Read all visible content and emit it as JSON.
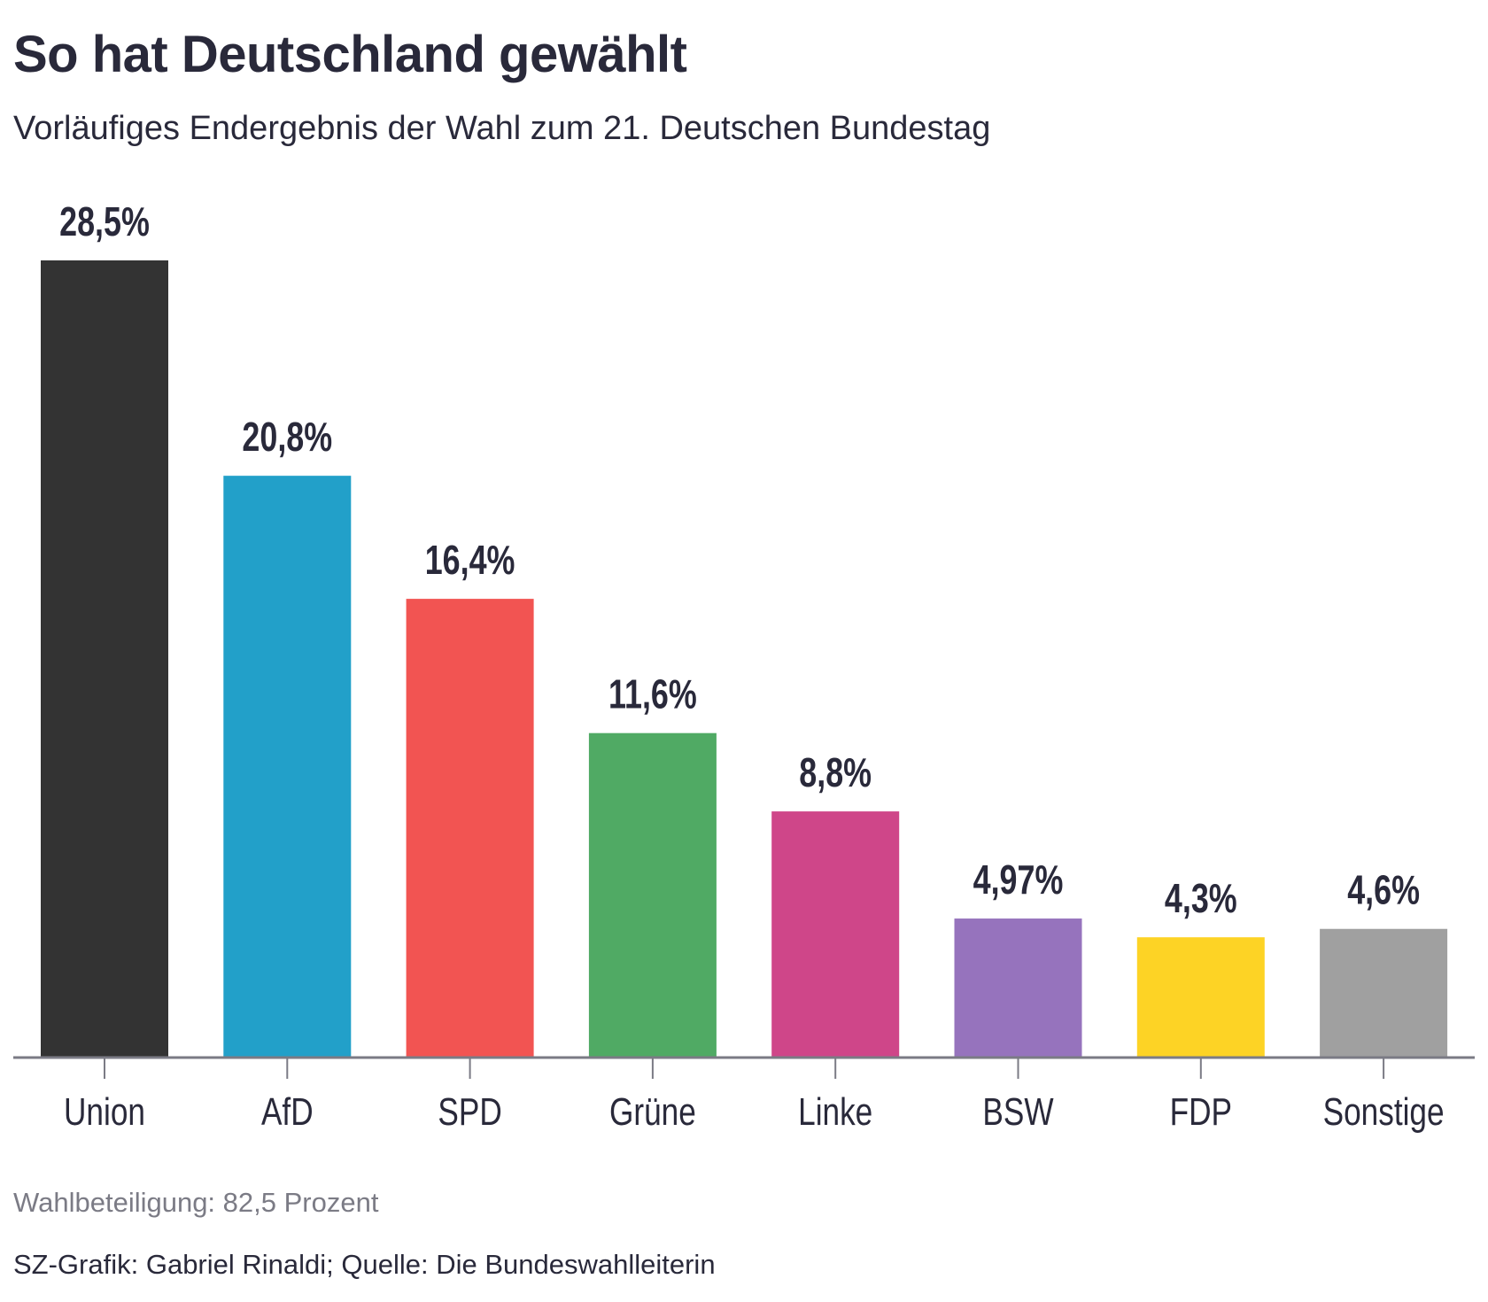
{
  "title": "So hat Deutschland gewählt",
  "subtitle": "Vorläufiges Endergebnis der Wahl zum 21. Deutschen Bundestag",
  "chart_data": {
    "type": "bar",
    "categories": [
      "Union",
      "AfD",
      "SPD",
      "Grüne",
      "Linke",
      "BSW",
      "FDP",
      "Sonstige"
    ],
    "values": [
      28.5,
      20.8,
      16.4,
      11.6,
      8.8,
      4.97,
      4.3,
      4.6
    ],
    "value_labels": [
      "28,5%",
      "20,8%",
      "16,4%",
      "11,6%",
      "8,8%",
      "4,97%",
      "4,3%",
      "4,6%"
    ],
    "colors": [
      "#333333",
      "#22a0c9",
      "#f25452",
      "#50aa64",
      "#cf4689",
      "#9673bd",
      "#fdd325",
      "#a0a0a0"
    ],
    "ylim": [
      0,
      28.5
    ],
    "xlabel": "",
    "ylabel": "",
    "grid": false,
    "legend": "none"
  },
  "footer": {
    "turnout": "Wahlbeteiligung: 82,5 Prozent",
    "source": "SZ-Grafik: Gabriel Rinaldi; Quelle: Die Bundeswahlleiterin"
  }
}
